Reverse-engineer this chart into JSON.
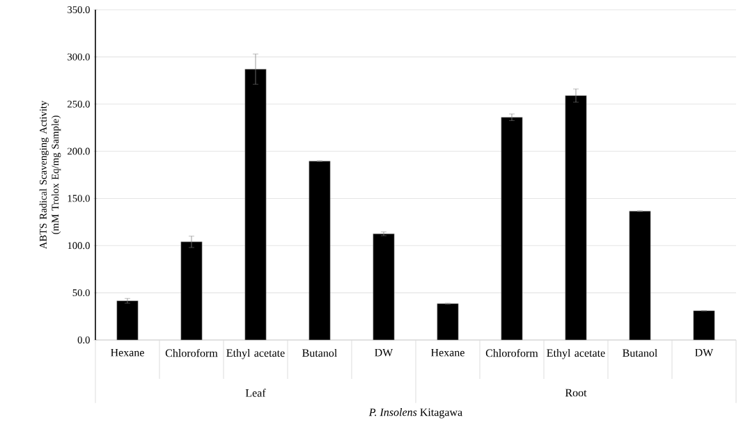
{
  "chart_data": {
    "type": "bar",
    "xlabel": "*P. Insolens* Kitagawa",
    "ylabel": "ABTS Radical Scavenging Activity (mM Trolox Eq/mg Sample)",
    "categories": [
      "Hexane",
      "Chloroform",
      "Ethyl acetate",
      "Butanol",
      "DW",
      "Hexane",
      "Chloroform",
      "Ethyl acetate",
      "Butanol",
      "DW"
    ],
    "values": [
      41.5,
      104,
      287,
      189.5,
      112.5,
      38.5,
      236,
      259,
      136.5,
      31
    ],
    "errors": [
      2.5,
      6,
      16,
      0.5,
      2,
      0.5,
      3.5,
      7,
      0.5,
      null
    ],
    "color": "#000000",
    "annotations": [
      "Leaf",
      "Root"
    ],
    "ylim": [
      0,
      350
    ],
    "yticks": [
      {
        "value": 0,
        "label": "0.0"
      },
      {
        "value": 50,
        "label": "50.0"
      },
      {
        "value": 100,
        "label": "100.0"
      },
      {
        "value": 150,
        "label": "150.0"
      },
      {
        "value": 200,
        "label": "200.0"
      },
      {
        "value": 250,
        "label": "250.0"
      },
      {
        "value": 300,
        "label": "300.0"
      },
      {
        "value": 350,
        "label": "350.0"
      }
    ],
    "grid": "y"
  }
}
